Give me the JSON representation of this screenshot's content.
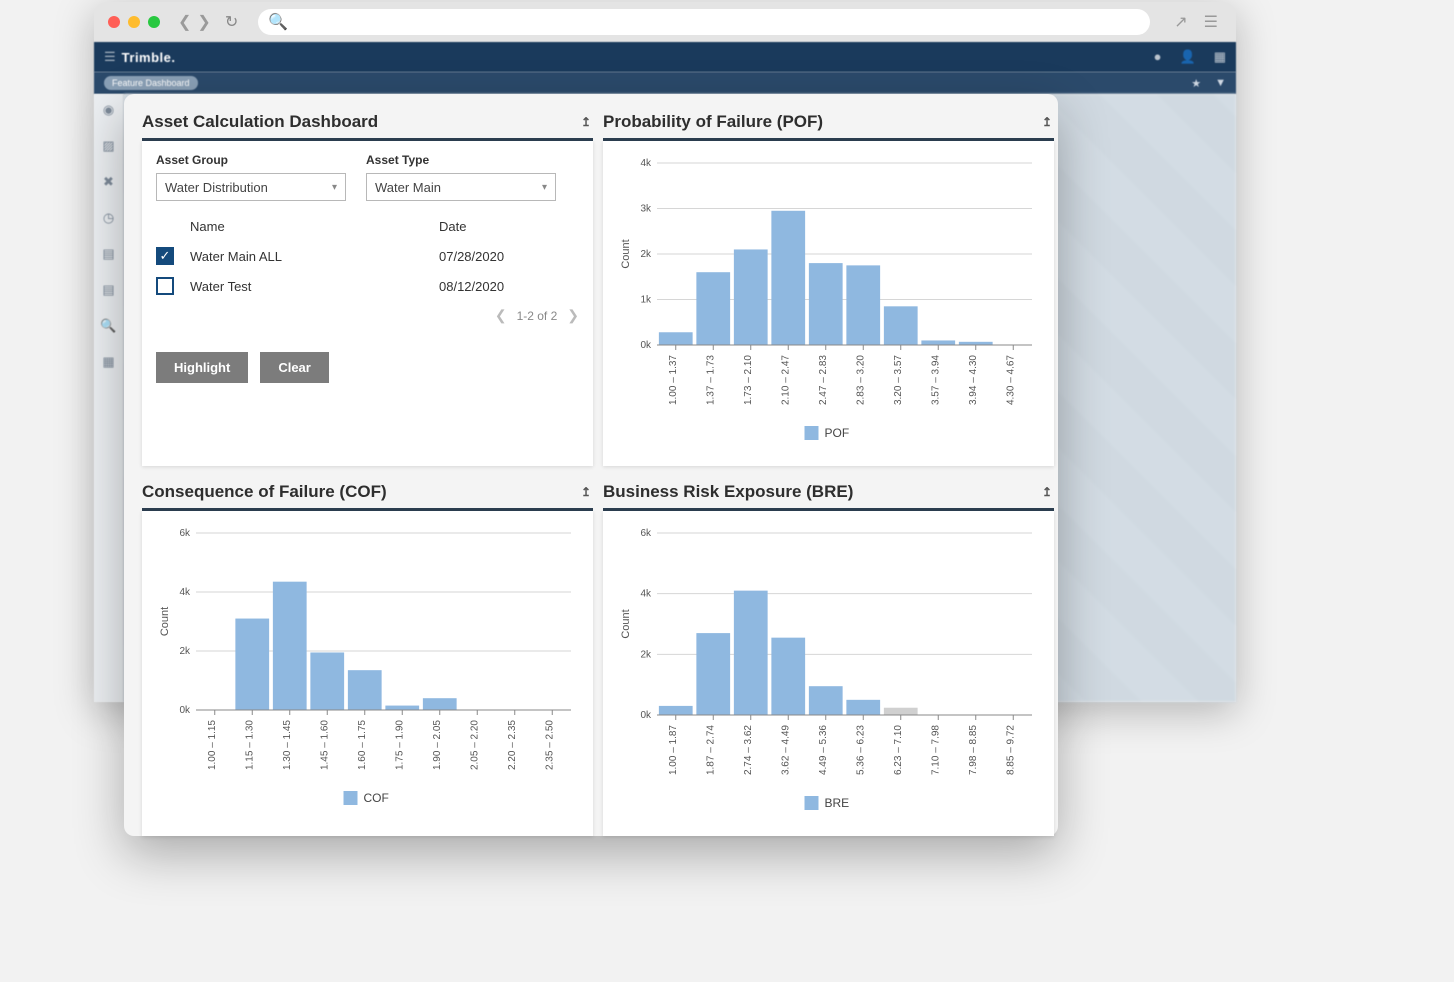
{
  "browser": {
    "traffic_colors": [
      "#ff5f57",
      "#febc2e",
      "#28c840"
    ],
    "search_placeholder": ""
  },
  "app_header": {
    "brand": "Trimble.",
    "breadcrumb_pill": "Feature Dashboard"
  },
  "panels": {
    "asset": {
      "title": "Asset Calculation Dashboard",
      "group_label": "Asset Group",
      "group_value": "Water Distribution",
      "type_label": "Asset Type",
      "type_value": "Water Main",
      "columns": {
        "name": "Name",
        "date": "Date"
      },
      "rows": [
        {
          "checked": true,
          "name": "Water Main ALL",
          "date": "07/28/2020"
        },
        {
          "checked": false,
          "name": "Water Test",
          "date": "08/12/2020"
        }
      ],
      "pager_text": "1-2 of 2",
      "btn_highlight": "Highlight",
      "btn_clear": "Clear"
    },
    "pof": {
      "title": "Probability of Failure (POF)",
      "chart": {
        "type": "histogram",
        "y_label": "Count",
        "y_ticks": [
          "0k",
          "1k",
          "2k",
          "3k",
          "4k"
        ],
        "y_max": 4000,
        "categories": [
          "1.00 – 1.37",
          "1.37 – 1.73",
          "1.73 – 2.10",
          "2.10 – 2.47",
          "2.47 – 2.83",
          "2.83 – 3.20",
          "3.20 – 3.57",
          "3.57 – 3.94",
          "3.94 – 4.30",
          "4.30 – 4.67"
        ],
        "values": [
          280,
          1600,
          2100,
          2950,
          1800,
          1750,
          850,
          100,
          70,
          0
        ],
        "bar_color": "#8fb8e0",
        "grid_color": "#d6d6d6",
        "axis_color": "#888",
        "label_fontsize": 10,
        "legend_label": "POF"
      }
    },
    "cof": {
      "title": "Consequence of Failure (COF)",
      "chart": {
        "type": "histogram",
        "y_label": "Count",
        "y_ticks": [
          "0k",
          "2k",
          "4k",
          "6k"
        ],
        "y_max": 6000,
        "categories": [
          "1.00 – 1.15",
          "1.15 – 1.30",
          "1.30 – 1.45",
          "1.45 – 1.60",
          "1.60 – 1.75",
          "1.75 – 1.90",
          "1.90 – 2.05",
          "2.05 – 2.20",
          "2.20 – 2.35",
          "2.35 – 2.50"
        ],
        "values": [
          0,
          3100,
          4350,
          1950,
          1350,
          150,
          400,
          0,
          0,
          0
        ],
        "bar_color": "#8fb8e0",
        "grid_color": "#d6d6d6",
        "axis_color": "#888",
        "label_fontsize": 10,
        "legend_label": "COF"
      }
    },
    "bre": {
      "title": "Business Risk Exposure (BRE)",
      "chart": {
        "type": "histogram",
        "y_label": "Count",
        "y_ticks": [
          "0k",
          "2k",
          "4k",
          "6k"
        ],
        "y_max": 6000,
        "categories": [
          "1.00 – 1.87",
          "1.87 – 2.74",
          "2.74 – 3.62",
          "3.62 – 4.49",
          "4.49 – 5.36",
          "5.36 – 6.23",
          "6.23 – 7.10",
          "7.10 – 7.98",
          "7.98 – 8.85",
          "8.85 – 9.72"
        ],
        "values": [
          300,
          2700,
          4100,
          2550,
          950,
          500,
          0,
          0,
          0,
          0
        ],
        "gray_bar_index": 6,
        "bar_color": "#8fb8e0",
        "gray_bar_color": "#d0d0d0",
        "grid_color": "#d6d6d6",
        "axis_color": "#888",
        "label_fontsize": 10,
        "legend_label": "BRE"
      }
    }
  },
  "colors": {
    "header_bg": "#1a3a5c",
    "panel_rule": "#2c3e50",
    "checkbox_blue": "#144a7c",
    "button_gray": "#7c7c7c",
    "bar_default": "#8fb8e0"
  }
}
